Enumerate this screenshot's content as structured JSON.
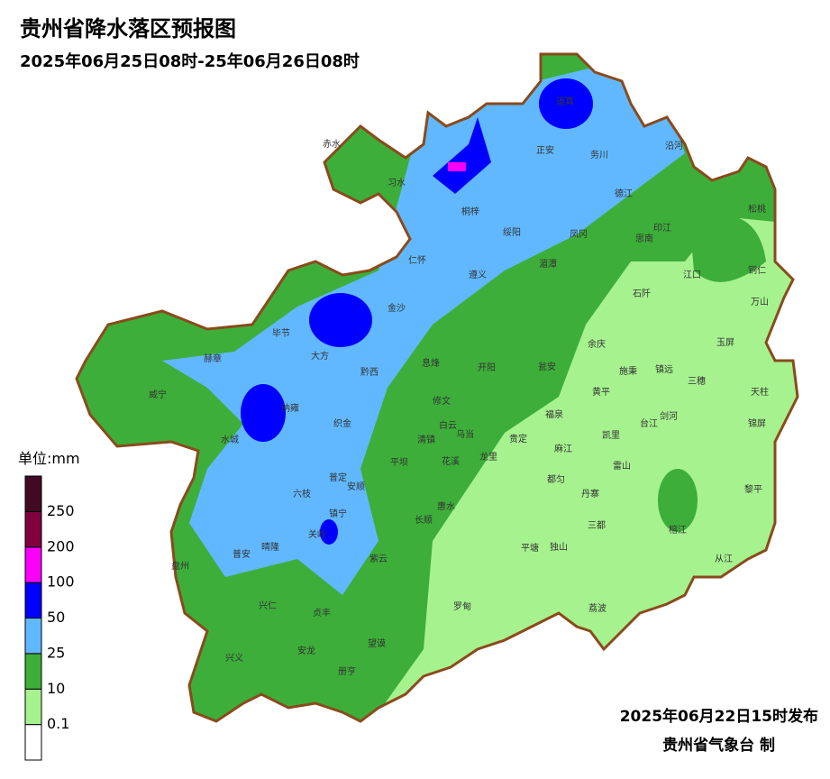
{
  "title": "贵州省降水落区预报图",
  "subtitle": "2025年06月25日08时-25年06月26日08时",
  "legend": {
    "unit": "单位:mm",
    "levels": [
      0.1,
      10,
      25,
      50,
      100,
      200,
      250
    ],
    "colors": [
      "#ffffff",
      "#a6f28f",
      "#3dae3a",
      "#61b8ff",
      "#0000fe",
      "#fa00fa",
      "#81003f",
      "#420a22"
    ]
  },
  "counties": [
    "赤水",
    "习水",
    "桐梓",
    "正安",
    "道真",
    "务川",
    "沿河",
    "德江",
    "松桃",
    "印江",
    "思南",
    "凤冈",
    "绥阳",
    "湄潭",
    "遵义",
    "仁怀",
    "金沙",
    "江口",
    "铜仁",
    "万山",
    "石阡",
    "余庆",
    "玉屏",
    "毕节",
    "大方",
    "黔西",
    "息烽",
    "开阳",
    "瓮安",
    "施秉",
    "镇远",
    "三穗",
    "天柱",
    "赫章",
    "威宁",
    "纳雍",
    "织金",
    "修文",
    "黄平",
    "福泉",
    "台江",
    "剑河",
    "锦屏",
    "水城",
    "清镇",
    "白云",
    "乌当",
    "贵定",
    "凯里",
    "麻江",
    "平坝",
    "花溪",
    "龙里",
    "雷山",
    "都匀",
    "丹寨",
    "黎平",
    "普定",
    "六枝",
    "安顺",
    "惠水",
    "镇宁",
    "关岭",
    "长顺",
    "三都",
    "榕江",
    "普安",
    "晴隆",
    "紫云",
    "平塘",
    "独山",
    "从江",
    "盘州",
    "兴仁",
    "贞丰",
    "罗甸",
    "荔波",
    "望谟",
    "兴义",
    "安龙",
    "册亨"
  ],
  "footer": {
    "issued": "2025年06月22日15时发布",
    "agency": "贵州省气象台 制"
  }
}
